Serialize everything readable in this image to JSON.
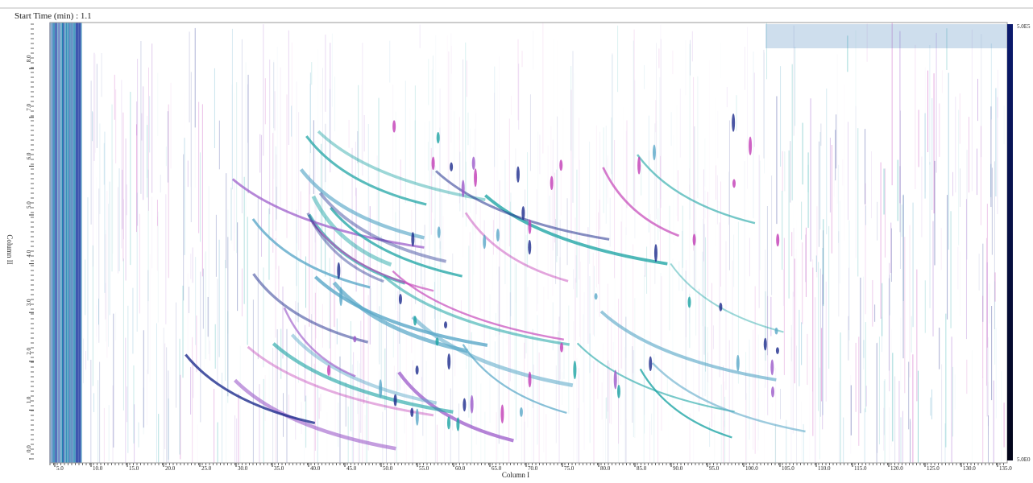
{
  "header": {
    "title": "Start Time (min) : 1.1"
  },
  "x_axis": {
    "label": "Column I",
    "ticks": [
      "5.0",
      "10.0",
      "15.0",
      "20.0",
      "25.0",
      "30.0",
      "35.0",
      "40.0",
      "45.0",
      "50.0",
      "55.0",
      "60.0",
      "65.0",
      "70.0",
      "75.0",
      "80.0",
      "85.0",
      "90.0",
      "95.0",
      "100.0",
      "105.0",
      "110.0",
      "115.0",
      "120.0",
      "125.0",
      "130.0",
      "135.0"
    ]
  },
  "y_axis": {
    "label": "Column II",
    "ticks": [
      "0.0",
      "1.0",
      "2.0",
      "3.0",
      "4.0",
      "5.0",
      "6.0",
      "7.0",
      "8.0"
    ]
  },
  "color_scale": {
    "max": "5.0E5",
    "min": "5.0E0"
  }
}
